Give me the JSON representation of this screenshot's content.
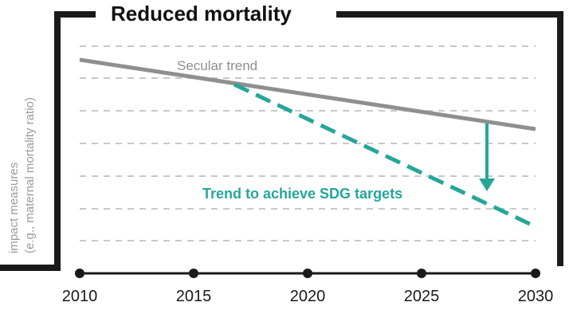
{
  "title": "Reduced mortality",
  "y_axis": {
    "label_line1": "impact measures",
    "label_line2": "(e.g., maternal mortality ratio)"
  },
  "x_axis": {
    "ticks": [
      "2010",
      "2015",
      "2020",
      "2025",
      "2030"
    ]
  },
  "colors": {
    "frame": "#1a1a1a",
    "secular": "#8f8f8f",
    "sdg": "#26a699",
    "grid": "#c8c8c8"
  },
  "annotations": {
    "secular_label": "Secular trend",
    "sdg_label": "Trend to achieve SDG targets"
  },
  "chart_data": {
    "type": "line",
    "title": "Reduced mortality",
    "xlabel": "",
    "ylabel": "impact measures (e.g., maternal mortality ratio)",
    "x_ticks": [
      2010,
      2015,
      2020,
      2025,
      2030
    ],
    "series": [
      {
        "name": "Secular trend",
        "x": [
          2010,
          2030
        ],
        "style": "solid"
      },
      {
        "name": "Trend to achieve SDG targets",
        "x": [
          2017,
          2030
        ],
        "style": "dashed"
      }
    ],
    "gap_arrow_at_x": 2028,
    "grid": "horizontal dashed"
  }
}
